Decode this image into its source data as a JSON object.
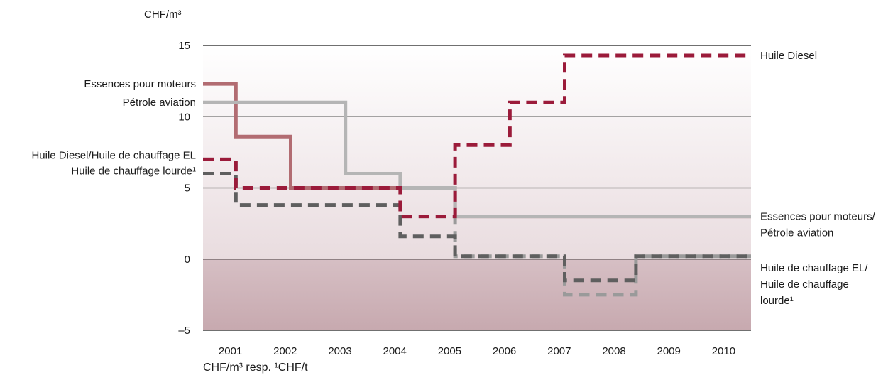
{
  "chart_data": {
    "type": "line",
    "ylabel": "CHF/m³",
    "footnote": "CHF/m³ resp. ¹CHF/t",
    "ylim": [
      -5,
      15
    ],
    "yticks": [
      {
        "value": 15,
        "label": "15"
      },
      {
        "value": 10,
        "label": "10"
      },
      {
        "value": 5,
        "label": "5"
      },
      {
        "value": 0,
        "label": "0"
      },
      {
        "value": -5,
        "label": "–5"
      }
    ],
    "categories": [
      "2001",
      "2002",
      "2003",
      "2004",
      "2005",
      "2006",
      "2007",
      "2008",
      "2009",
      "2010"
    ],
    "colors": {
      "diesel": "#9b1b3a",
      "essence": "#b26c72",
      "aviation": "#b5b5b5",
      "heavy": "#5f5f5f",
      "light": "#9a9a9a",
      "bg_top": "#ffffff",
      "bg_mid": "#e9dcdf",
      "bg_bottom": "#c7a9af"
    },
    "series": [
      {
        "key": "essence",
        "name": "Essences pour moteurs",
        "style": "solid",
        "color": "#b26c72",
        "steps": [
          {
            "x0": 2001,
            "x1": 2001.6,
            "y": 12.3
          },
          {
            "x0": 2001.6,
            "x1": 2002.6,
            "y": 8.6
          },
          {
            "x0": 2002.6,
            "x1": 2005.6,
            "y": 5
          },
          {
            "x0": 2005.6,
            "x1": 2011,
            "y": 3
          }
        ]
      },
      {
        "key": "aviation",
        "name": "Pétrole aviation",
        "style": "solid",
        "color": "#b5b5b5",
        "steps": [
          {
            "x0": 2001,
            "x1": 2003.6,
            "y": 11
          },
          {
            "x0": 2003.6,
            "x1": 2004.6,
            "y": 6
          },
          {
            "x0": 2004.6,
            "x1": 2005.6,
            "y": 5
          },
          {
            "x0": 2005.6,
            "x1": 2011,
            "y": 3
          }
        ]
      },
      {
        "key": "light",
        "name": "Huile de chauffage EL",
        "style": "dashed",
        "color": "#9a9a9a",
        "steps": [
          {
            "x0": 2001,
            "x1": 2001.6,
            "y": 7
          },
          {
            "x0": 2001.6,
            "x1": 2004.6,
            "y": 5
          },
          {
            "x0": 2004.6,
            "x1": 2005.6,
            "y": 3
          },
          {
            "x0": 2005.6,
            "x1": 2007.6,
            "y": 0.2
          },
          {
            "x0": 2007.6,
            "x1": 2008.9,
            "y": -2.5
          },
          {
            "x0": 2008.9,
            "x1": 2011,
            "y": 0.2
          }
        ]
      },
      {
        "key": "heavy",
        "name": "Huile de chauffage lourde¹",
        "style": "dashed",
        "color": "#5f5f5f",
        "steps": [
          {
            "x0": 2001,
            "x1": 2001.6,
            "y": 6
          },
          {
            "x0": 2001.6,
            "x1": 2004.6,
            "y": 3.8
          },
          {
            "x0": 2004.6,
            "x1": 2005.6,
            "y": 1.6
          },
          {
            "x0": 2005.6,
            "x1": 2007.6,
            "y": 0.2
          },
          {
            "x0": 2007.6,
            "x1": 2008.9,
            "y": -1.5
          },
          {
            "x0": 2008.9,
            "x1": 2011,
            "y": 0.2
          }
        ]
      },
      {
        "key": "diesel",
        "name": "Huile Diesel",
        "style": "dashed",
        "color": "#9b1b3a",
        "steps": [
          {
            "x0": 2001,
            "x1": 2001.6,
            "y": 7
          },
          {
            "x0": 2001.6,
            "x1": 2004.6,
            "y": 5
          },
          {
            "x0": 2004.6,
            "x1": 2005.6,
            "y": 3
          },
          {
            "x0": 2005.6,
            "x1": 2006.6,
            "y": 8
          },
          {
            "x0": 2006.6,
            "x1": 2007.6,
            "y": 11
          },
          {
            "x0": 2007.6,
            "x1": 2011,
            "y": 14.3
          }
        ]
      }
    ],
    "labels_left": [
      {
        "text": "Essences pour moteurs",
        "y": 12.3
      },
      {
        "text": "Pétrole aviation",
        "y": 11
      },
      {
        "text": "Huile Diesel/Huile de chauffage EL",
        "y": 7.3
      },
      {
        "text": "Huile de chauffage lourde¹",
        "y": 6.2
      }
    ],
    "labels_right": [
      {
        "lines": [
          "Huile Diesel"
        ],
        "y": 14.3
      },
      {
        "lines": [
          "Essences pour moteurs/",
          "Pétrole aviation"
        ],
        "y": 3.0
      },
      {
        "lines": [
          "Huile de chauffage EL/",
          "Huile de chauffage",
          "lourde¹"
        ],
        "y": -0.6
      }
    ]
  }
}
